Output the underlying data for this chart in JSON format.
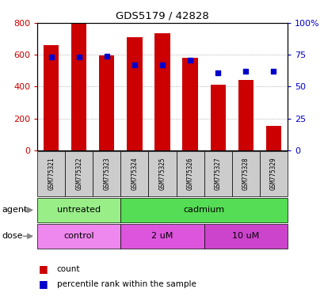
{
  "title": "GDS5179 / 42828",
  "samples": [
    "GSM775321",
    "GSM775322",
    "GSM775323",
    "GSM775324",
    "GSM775325",
    "GSM775326",
    "GSM775327",
    "GSM775328",
    "GSM775329"
  ],
  "counts": [
    660,
    795,
    595,
    710,
    735,
    580,
    410,
    440,
    155
  ],
  "percentile_ranks": [
    73,
    73,
    74,
    67,
    67,
    71,
    61,
    62,
    62
  ],
  "ylim_left": [
    0,
    800
  ],
  "ylim_right": [
    0,
    100
  ],
  "yticks_left": [
    0,
    200,
    400,
    600,
    800
  ],
  "yticks_right": [
    0,
    25,
    50,
    75,
    100
  ],
  "yticklabels_right": [
    "0",
    "25",
    "50",
    "75",
    "100%"
  ],
  "bar_color": "#cc0000",
  "dot_color": "#0000cc",
  "agent_groups": [
    {
      "label": "untreated",
      "start": 0,
      "end": 3,
      "color": "#99ee88"
    },
    {
      "label": "cadmium",
      "start": 3,
      "end": 9,
      "color": "#55dd55"
    }
  ],
  "dose_groups": [
    {
      "label": "control",
      "start": 0,
      "end": 3,
      "color": "#ee88ee"
    },
    {
      "label": "2 uM",
      "start": 3,
      "end": 6,
      "color": "#dd55dd"
    },
    {
      "label": "10 uM",
      "start": 6,
      "end": 9,
      "color": "#cc44cc"
    }
  ],
  "legend_count_color": "#cc0000",
  "legend_dot_color": "#0000cc",
  "label_agent": "agent",
  "label_dose": "dose",
  "bg_sample_color": "#cccccc",
  "grid_color": "#999999"
}
